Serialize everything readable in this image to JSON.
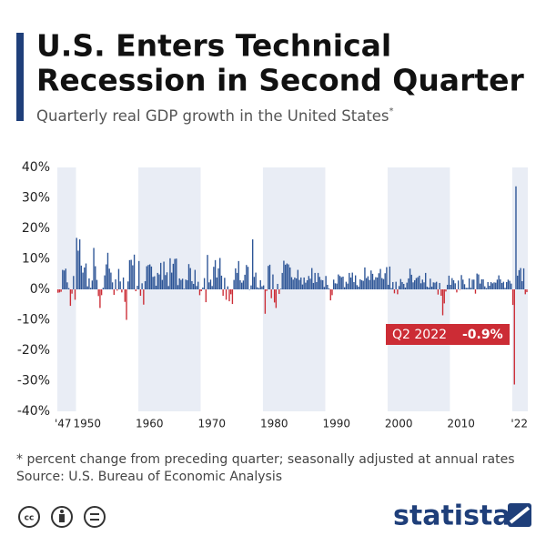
{
  "chart_data": {
    "type": "bar",
    "title_lines": [
      "U.S. Enters Technical",
      "Recession in Second Quarter"
    ],
    "subtitle": "Quarterly real GDP growth in the United States",
    "subtitle_mark": "*",
    "footnote": "* percent change from preceding quarter; seasonally adjusted at annual rates",
    "source": "Source: U.S. Bureau of Economic Analysis",
    "brand": "statista",
    "positive_color": "#2c5496",
    "negative_color": "#cc2c35",
    "band_color": "#e9edf5",
    "bands": [
      [
        1947,
        1950
      ],
      [
        1960,
        1970
      ],
      [
        1980,
        1990
      ],
      [
        2000,
        2010
      ],
      [
        2020,
        2022.5
      ]
    ],
    "annotation": {
      "text": "Q2 2022",
      "value_text": "-0.9%",
      "color": "#cc2c35"
    },
    "xlim": [
      1947,
      2022.5
    ],
    "xticks": [
      {
        "value": 1947,
        "label": "'47"
      },
      1950,
      1960,
      1970,
      1980,
      1990,
      2000,
      2010,
      {
        "value": 2022,
        "label": "'22"
      }
    ],
    "ylim": [
      -40,
      40
    ],
    "yticks": [
      {
        "value": -40,
        "label": "-40%"
      },
      {
        "value": -30,
        "label": "-30%"
      },
      {
        "value": -20,
        "label": "-20%"
      },
      {
        "value": -10,
        "label": "-10%"
      },
      {
        "value": 0,
        "label": "0%"
      },
      {
        "value": 10,
        "label": "10%"
      },
      {
        "value": 20,
        "label": "20%"
      },
      {
        "value": 30,
        "label": "30%"
      },
      {
        "value": 40,
        "label": "40%"
      }
    ],
    "x": [
      1947,
      1947.25,
      1947.5,
      1947.75,
      1948,
      1948.25,
      1948.5,
      1948.75,
      1949,
      1949.25,
      1949.5,
      1949.75,
      1950,
      1950.25,
      1950.5,
      1950.75,
      1951,
      1951.25,
      1951.5,
      1951.75,
      1952,
      1952.25,
      1952.5,
      1952.75,
      1953,
      1953.25,
      1953.5,
      1953.75,
      1954,
      1954.25,
      1954.5,
      1954.75,
      1955,
      1955.25,
      1955.5,
      1955.75,
      1956,
      1956.25,
      1956.5,
      1956.75,
      1957,
      1957.25,
      1957.5,
      1957.75,
      1958,
      1958.25,
      1958.5,
      1958.75,
      1959,
      1959.25,
      1959.5,
      1959.75,
      1960,
      1960.25,
      1960.5,
      1960.75,
      1961,
      1961.25,
      1961.5,
      1961.75,
      1962,
      1962.25,
      1962.5,
      1962.75,
      1963,
      1963.25,
      1963.5,
      1963.75,
      1964,
      1964.25,
      1964.5,
      1964.75,
      1965,
      1965.25,
      1965.5,
      1965.75,
      1966,
      1966.25,
      1966.5,
      1966.75,
      1967,
      1967.25,
      1967.5,
      1967.75,
      1968,
      1968.25,
      1968.5,
      1968.75,
      1969,
      1969.25,
      1969.5,
      1969.75,
      1970,
      1970.25,
      1970.5,
      1970.75,
      1971,
      1971.25,
      1971.5,
      1971.75,
      1972,
      1972.25,
      1972.5,
      1972.75,
      1973,
      1973.25,
      1973.5,
      1973.75,
      1974,
      1974.25,
      1974.5,
      1974.75,
      1975,
      1975.25,
      1975.5,
      1975.75,
      1976,
      1976.25,
      1976.5,
      1976.75,
      1977,
      1977.25,
      1977.5,
      1977.75,
      1978,
      1978.25,
      1978.5,
      1978.75,
      1979,
      1979.25,
      1979.5,
      1979.75,
      1980,
      1980.25,
      1980.5,
      1980.75,
      1981,
      1981.25,
      1981.5,
      1981.75,
      1982,
      1982.25,
      1982.5,
      1982.75,
      1983,
      1983.25,
      1983.5,
      1983.75,
      1984,
      1984.25,
      1984.5,
      1984.75,
      1985,
      1985.25,
      1985.5,
      1985.75,
      1986,
      1986.25,
      1986.5,
      1986.75,
      1987,
      1987.25,
      1987.5,
      1987.75,
      1988,
      1988.25,
      1988.5,
      1988.75,
      1989,
      1989.25,
      1989.5,
      1989.75,
      1990,
      1990.25,
      1990.5,
      1990.75,
      1991,
      1991.25,
      1991.5,
      1991.75,
      1992,
      1992.25,
      1992.5,
      1992.75,
      1993,
      1993.25,
      1993.5,
      1993.75,
      1994,
      1994.25,
      1994.5,
      1994.75,
      1995,
      1995.25,
      1995.5,
      1995.75,
      1996,
      1996.25,
      1996.5,
      1996.75,
      1997,
      1997.25,
      1997.5,
      1997.75,
      1998,
      1998.25,
      1998.5,
      1998.75,
      1999,
      1999.25,
      1999.5,
      1999.75,
      2000,
      2000.25,
      2000.5,
      2000.75,
      2001,
      2001.25,
      2001.5,
      2001.75,
      2002,
      2002.25,
      2002.5,
      2002.75,
      2003,
      2003.25,
      2003.5,
      2003.75,
      2004,
      2004.25,
      2004.5,
      2004.75,
      2005,
      2005.25,
      2005.5,
      2005.75,
      2006,
      2006.25,
      2006.5,
      2006.75,
      2007,
      2007.25,
      2007.5,
      2007.75,
      2008,
      2008.25,
      2008.5,
      2008.75,
      2009,
      2009.25,
      2009.5,
      2009.75,
      2010,
      2010.25,
      2010.5,
      2010.75,
      2011,
      2011.25,
      2011.5,
      2011.75,
      2012,
      2012.25,
      2012.5,
      2012.75,
      2013,
      2013.25,
      2013.5,
      2013.75,
      2014,
      2014.25,
      2014.5,
      2014.75,
      2015,
      2015.25,
      2015.5,
      2015.75,
      2016,
      2016.25,
      2016.5,
      2016.75,
      2017,
      2017.25,
      2017.5,
      2017.75,
      2018,
      2018.25,
      2018.5,
      2018.75,
      2019,
      2019.25,
      2019.5,
      2019.75,
      2020,
      2020.25,
      2020.5,
      2020.75,
      2021,
      2021.25,
      2021.5,
      2021.75,
      2022,
      2022.25
    ],
    "values": [
      -1.1,
      -1.0,
      -0.8,
      6.4,
      6.2,
      6.8,
      2.3,
      0.4,
      -5.4,
      -1.4,
      4.4,
      -3.4,
      16.9,
      12.7,
      16.4,
      7.8,
      5.5,
      7.2,
      8.5,
      1.0,
      3.6,
      0.5,
      2.9,
      13.6,
      7.6,
      3.1,
      -2.2,
      -6.1,
      -1.9,
      0.5,
      4.6,
      8.2,
      12.0,
      6.8,
      5.5,
      2.3,
      -1.8,
      3.3,
      -0.4,
      6.7,
      2.6,
      -1.0,
      3.9,
      -4.1,
      -10.0,
      2.6,
      9.6,
      9.7,
      7.9,
      11.4,
      -0.6,
      1.2,
      9.3,
      -2.1,
      2.0,
      -5.0,
      2.7,
      7.6,
      8.0,
      8.2,
      7.5,
      4.1,
      4.3,
      1.2,
      5.4,
      4.9,
      8.7,
      3.1,
      9.1,
      4.7,
      5.6,
      1.1,
      10.2,
      5.5,
      8.4,
      10.0,
      10.1,
      1.4,
      3.6,
      3.1,
      3.5,
      0.2,
      3.2,
      3.0,
      8.3,
      7.0,
      2.7,
      1.8,
      6.4,
      1.1,
      2.5,
      -1.9,
      -0.6,
      0.6,
      3.7,
      -4.2,
      11.3,
      2.3,
      3.2,
      1.1,
      7.4,
      9.6,
      3.9,
      6.9,
      10.3,
      4.5,
      -2.1,
      3.8,
      -3.4,
      1.0,
      -3.9,
      -1.6,
      -4.8,
      3.1,
      6.9,
      5.4,
      9.3,
      3.0,
      2.2,
      2.9,
      4.8,
      8.0,
      7.4,
      0.0,
      1.3,
      16.4,
      4.1,
      5.5,
      0.7,
      0.4,
      3.0,
      1.0,
      1.3,
      -8.0,
      -0.5,
      7.7,
      8.1,
      -2.9,
      4.9,
      -4.3,
      -6.1,
      1.8,
      -1.5,
      0.2,
      5.4,
      9.4,
      8.1,
      8.5,
      8.2,
      7.2,
      4.0,
      3.2,
      3.9,
      3.6,
      6.4,
      3.1,
      3.9,
      1.6,
      3.9,
      2.2,
      3.0,
      4.4,
      3.5,
      7.0,
      2.1,
      5.4,
      2.4,
      5.4,
      4.1,
      3.1,
      3.0,
      0.8,
      4.4,
      1.5,
      0.3,
      -3.6,
      -1.9,
      3.2,
      2.0,
      1.9,
      4.9,
      4.4,
      4.0,
      4.2,
      0.7,
      2.5,
      1.9,
      5.4,
      3.9,
      5.5,
      2.4,
      4.6,
      1.4,
      0.9,
      3.3,
      3.0,
      2.8,
      7.2,
      3.7,
      4.3,
      3.1,
      6.2,
      5.1,
      3.1,
      4.0,
      3.9,
      5.3,
      6.7,
      3.7,
      3.4,
      5.3,
      7.3,
      1.5,
      7.5,
      0.4,
      2.4,
      -1.3,
      2.5,
      -1.6,
      1.1,
      3.4,
      2.4,
      1.8,
      0.6,
      2.2,
      3.6,
      6.8,
      4.8,
      2.3,
      3.0,
      3.7,
      4.0,
      4.5,
      2.0,
      3.2,
      2.3,
      5.4,
      0.9,
      0.6,
      3.5,
      0.9,
      2.3,
      2.2,
      2.5,
      -1.7,
      2.1,
      -2.1,
      -8.5,
      -4.6,
      -0.7,
      1.5,
      4.5,
      1.5,
      3.7,
      3.0,
      2.0,
      -1.0,
      2.9,
      -0.1,
      4.7,
      3.2,
      1.7,
      0.5,
      0.5,
      3.6,
      0.5,
      3.2,
      3.2,
      -1.4,
      5.2,
      4.9,
      1.9,
      3.3,
      3.3,
      1.0,
      0.4,
      2.4,
      1.2,
      2.4,
      2.0,
      2.3,
      2.2,
      3.2,
      4.6,
      3.3,
      2.1,
      2.5,
      0.5,
      2.4,
      3.2,
      2.8,
      1.9,
      -5.1,
      -31.2,
      33.8,
      4.5,
      6.3,
      7.0,
      2.7,
      6.9,
      -1.6,
      -0.9
    ]
  }
}
